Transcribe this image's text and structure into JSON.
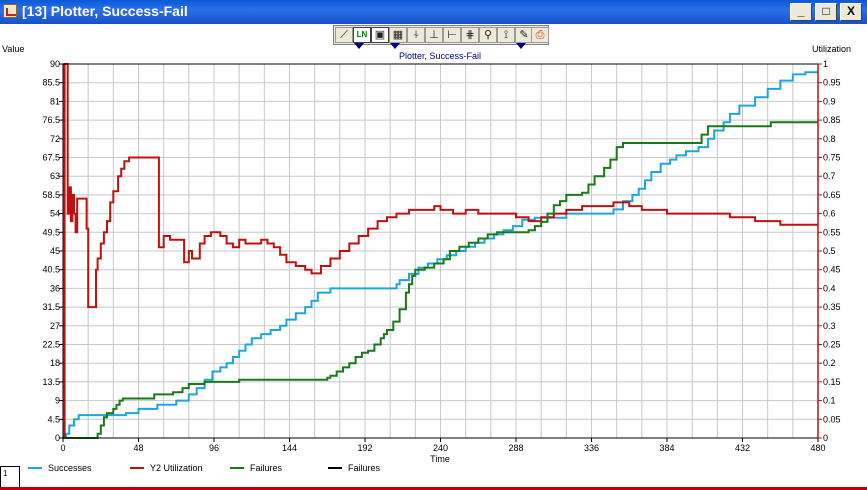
{
  "window": {
    "title": "[13]  Plotter, Success-Fail",
    "minimize_label": "_",
    "maximize_label": "□",
    "close_label": "X"
  },
  "toolbar": {
    "buttons": [
      {
        "icon": "line-plot-icon",
        "glyph": "⟋"
      },
      {
        "icon": "labels-icon",
        "glyph": "LN"
      },
      {
        "icon": "save-icon",
        "glyph": "▣"
      },
      {
        "icon": "grid-icon",
        "glyph": "▦"
      },
      {
        "icon": "pin-icon",
        "glyph": "⍭"
      },
      {
        "icon": "axis-x-icon",
        "glyph": "⊥"
      },
      {
        "icon": "axis-y-icon",
        "glyph": "⊢"
      },
      {
        "icon": "axis-xy-icon",
        "glyph": "⋕"
      },
      {
        "icon": "zoom-icon",
        "glyph": "⚲"
      },
      {
        "icon": "cursor-icon",
        "glyph": "⟟"
      },
      {
        "icon": "pen-icon",
        "glyph": "✎"
      },
      {
        "icon": "print-icon",
        "glyph": "⎙"
      }
    ]
  },
  "status": {
    "page": "1"
  },
  "colors": {
    "successes": "#1fa6d8",
    "utilization": "#c01010",
    "failures": "#1a7a1a",
    "failures_black": "#000000",
    "grid": "#c8c8c8",
    "right_axis": "#c01010"
  },
  "chart_data": {
    "type": "line",
    "title": "Plotter, Success-Fail",
    "ylabel": "Value",
    "y2label": "Utilization",
    "xlabel": "Time",
    "xlim": [
      0,
      480
    ],
    "ylim": [
      0,
      90
    ],
    "y2lim": [
      0,
      1
    ],
    "x_ticks": [
      0,
      48,
      96,
      144,
      192,
      240,
      288,
      336,
      384,
      432,
      480
    ],
    "y_ticks": [
      0,
      4.5,
      9,
      13.5,
      18,
      22.5,
      27,
      31.5,
      36,
      40.5,
      45,
      49.5,
      54,
      58.5,
      63,
      67.5,
      72,
      76.5,
      81,
      85.5,
      90
    ],
    "y2_ticks": [
      "0",
      "0.05",
      "0.1",
      "0.15",
      "0.2",
      "0.25",
      "0.3",
      "0.35",
      "0.4",
      "0.45",
      "0.5",
      "0.55",
      "0.6",
      "0.65",
      "0.7",
      "0.75",
      "0.8",
      "0.85",
      "0.9",
      "0.95",
      "1"
    ],
    "grid": true,
    "legend_position": "bottom",
    "series": [
      {
        "name": "Successes",
        "axis": "left",
        "step": true,
        "points": [
          [
            0,
            0
          ],
          [
            2,
            1
          ],
          [
            4,
            3
          ],
          [
            7,
            4.5
          ],
          [
            10,
            5.5
          ],
          [
            40,
            6
          ],
          [
            48,
            7
          ],
          [
            60,
            8
          ],
          [
            72,
            9
          ],
          [
            80,
            10.5
          ],
          [
            85,
            12
          ],
          [
            90,
            14
          ],
          [
            95,
            16
          ],
          [
            100,
            17
          ],
          [
            104,
            18
          ],
          [
            108,
            19.5
          ],
          [
            112,
            21
          ],
          [
            116,
            22.5
          ],
          [
            120,
            24
          ],
          [
            126,
            25
          ],
          [
            132,
            26
          ],
          [
            138,
            27
          ],
          [
            142,
            28.5
          ],
          [
            148,
            30
          ],
          [
            154,
            31.5
          ],
          [
            158,
            33
          ],
          [
            162,
            35
          ],
          [
            170,
            36
          ],
          [
            200,
            36
          ],
          [
            206,
            36
          ],
          [
            212,
            37
          ],
          [
            214,
            38
          ],
          [
            220,
            39.5
          ],
          [
            226,
            41
          ],
          [
            232,
            42
          ],
          [
            238,
            43
          ],
          [
            244,
            44
          ],
          [
            250,
            45
          ],
          [
            256,
            46
          ],
          [
            262,
            47
          ],
          [
            268,
            48
          ],
          [
            274,
            49
          ],
          [
            280,
            50
          ],
          [
            286,
            51
          ],
          [
            292,
            52.5
          ],
          [
            300,
            53
          ],
          [
            310,
            53
          ],
          [
            320,
            54
          ],
          [
            336,
            54
          ],
          [
            350,
            55
          ],
          [
            356,
            57
          ],
          [
            362,
            58.5
          ],
          [
            366,
            60
          ],
          [
            370,
            62
          ],
          [
            374,
            64
          ],
          [
            380,
            66
          ],
          [
            386,
            67
          ],
          [
            390,
            68
          ],
          [
            396,
            69
          ],
          [
            404,
            70
          ],
          [
            410,
            72
          ],
          [
            414,
            74
          ],
          [
            420,
            76
          ],
          [
            424,
            78
          ],
          [
            430,
            80
          ],
          [
            440,
            82
          ],
          [
            448,
            84
          ],
          [
            456,
            86
          ],
          [
            464,
            87.5
          ],
          [
            472,
            88
          ],
          [
            480,
            88
          ]
        ]
      },
      {
        "name": "Y2 Utilization",
        "axis": "right",
        "step": true,
        "points": [
          [
            0,
            0
          ],
          [
            1,
            1
          ],
          [
            3,
            0.6
          ],
          [
            4,
            0.67
          ],
          [
            5,
            0.58
          ],
          [
            6,
            0.65
          ],
          [
            7,
            0.6
          ],
          [
            8,
            0.55
          ],
          [
            9,
            0.64
          ],
          [
            14,
            0.64
          ],
          [
            15,
            0.56
          ],
          [
            16,
            0.35
          ],
          [
            20,
            0.35
          ],
          [
            21,
            0.45
          ],
          [
            22,
            0.48
          ],
          [
            24,
            0.52
          ],
          [
            26,
            0.55
          ],
          [
            28,
            0.58
          ],
          [
            30,
            0.63
          ],
          [
            32,
            0.66
          ],
          [
            35,
            0.7
          ],
          [
            37,
            0.72
          ],
          [
            39,
            0.74
          ],
          [
            42,
            0.75
          ],
          [
            60,
            0.75
          ],
          [
            61,
            0.51
          ],
          [
            64,
            0.54
          ],
          [
            68,
            0.53
          ],
          [
            76,
            0.53
          ],
          [
            77,
            0.47
          ],
          [
            80,
            0.5
          ],
          [
            82,
            0.48
          ],
          [
            87,
            0.52
          ],
          [
            90,
            0.54
          ],
          [
            94,
            0.55
          ],
          [
            100,
            0.54
          ],
          [
            104,
            0.52
          ],
          [
            108,
            0.51
          ],
          [
            112,
            0.53
          ],
          [
            116,
            0.52
          ],
          [
            120,
            0.52
          ],
          [
            126,
            0.53
          ],
          [
            130,
            0.52
          ],
          [
            134,
            0.51
          ],
          [
            138,
            0.49
          ],
          [
            142,
            0.47
          ],
          [
            148,
            0.46
          ],
          [
            154,
            0.45
          ],
          [
            158,
            0.44
          ],
          [
            164,
            0.46
          ],
          [
            170,
            0.48
          ],
          [
            176,
            0.5
          ],
          [
            182,
            0.52
          ],
          [
            188,
            0.54
          ],
          [
            194,
            0.56
          ],
          [
            200,
            0.58
          ],
          [
            206,
            0.59
          ],
          [
            212,
            0.6
          ],
          [
            220,
            0.61
          ],
          [
            230,
            0.61
          ],
          [
            236,
            0.62
          ],
          [
            240,
            0.61
          ],
          [
            248,
            0.6
          ],
          [
            256,
            0.61
          ],
          [
            264,
            0.6
          ],
          [
            272,
            0.6
          ],
          [
            280,
            0.6
          ],
          [
            288,
            0.59
          ],
          [
            296,
            0.58
          ],
          [
            304,
            0.59
          ],
          [
            312,
            0.6
          ],
          [
            320,
            0.61
          ],
          [
            330,
            0.62
          ],
          [
            340,
            0.62
          ],
          [
            350,
            0.63
          ],
          [
            360,
            0.62
          ],
          [
            368,
            0.61
          ],
          [
            376,
            0.61
          ],
          [
            384,
            0.6
          ],
          [
            392,
            0.6
          ],
          [
            400,
            0.6
          ],
          [
            408,
            0.6
          ],
          [
            416,
            0.6
          ],
          [
            424,
            0.59
          ],
          [
            432,
            0.59
          ],
          [
            440,
            0.58
          ],
          [
            448,
            0.58
          ],
          [
            456,
            0.57
          ],
          [
            464,
            0.57
          ],
          [
            472,
            0.57
          ],
          [
            480,
            0.57
          ]
        ]
      },
      {
        "name": "Failures",
        "axis": "left",
        "step": true,
        "points": [
          [
            0,
            0
          ],
          [
            20,
            0
          ],
          [
            22,
            1
          ],
          [
            24,
            3
          ],
          [
            26,
            5
          ],
          [
            28,
            6
          ],
          [
            32,
            7
          ],
          [
            34,
            8
          ],
          [
            36,
            9
          ],
          [
            38,
            9.5
          ],
          [
            50,
            9.5
          ],
          [
            58,
            10.5
          ],
          [
            70,
            11
          ],
          [
            76,
            12
          ],
          [
            80,
            13
          ],
          [
            90,
            13.5
          ],
          [
            112,
            14
          ],
          [
            168,
            14.5
          ],
          [
            170,
            15
          ],
          [
            174,
            16
          ],
          [
            178,
            17
          ],
          [
            182,
            18
          ],
          [
            186,
            19.5
          ],
          [
            190,
            20.5
          ],
          [
            194,
            21
          ],
          [
            198,
            22.5
          ],
          [
            202,
            24
          ],
          [
            204,
            25
          ],
          [
            206,
            26
          ],
          [
            210,
            28
          ],
          [
            214,
            31
          ],
          [
            218,
            35
          ],
          [
            220,
            37
          ],
          [
            222,
            39
          ],
          [
            224,
            40.5
          ],
          [
            230,
            41
          ],
          [
            236,
            42
          ],
          [
            242,
            43
          ],
          [
            246,
            45
          ],
          [
            252,
            46
          ],
          [
            258,
            47
          ],
          [
            264,
            48
          ],
          [
            270,
            49
          ],
          [
            276,
            49.5
          ],
          [
            290,
            49.5
          ],
          [
            296,
            50
          ],
          [
            300,
            51
          ],
          [
            304,
            52
          ],
          [
            308,
            54
          ],
          [
            312,
            56
          ],
          [
            316,
            57
          ],
          [
            320,
            58.5
          ],
          [
            330,
            59
          ],
          [
            334,
            61
          ],
          [
            338,
            63
          ],
          [
            344,
            65
          ],
          [
            348,
            67
          ],
          [
            352,
            70
          ],
          [
            356,
            71
          ],
          [
            378,
            71
          ],
          [
            402,
            71
          ],
          [
            406,
            73
          ],
          [
            410,
            75
          ],
          [
            412,
            75
          ],
          [
            440,
            75
          ],
          [
            450,
            76
          ],
          [
            480,
            76
          ]
        ]
      },
      {
        "name": "Failures",
        "axis": "left",
        "step": true,
        "points": []
      }
    ]
  }
}
